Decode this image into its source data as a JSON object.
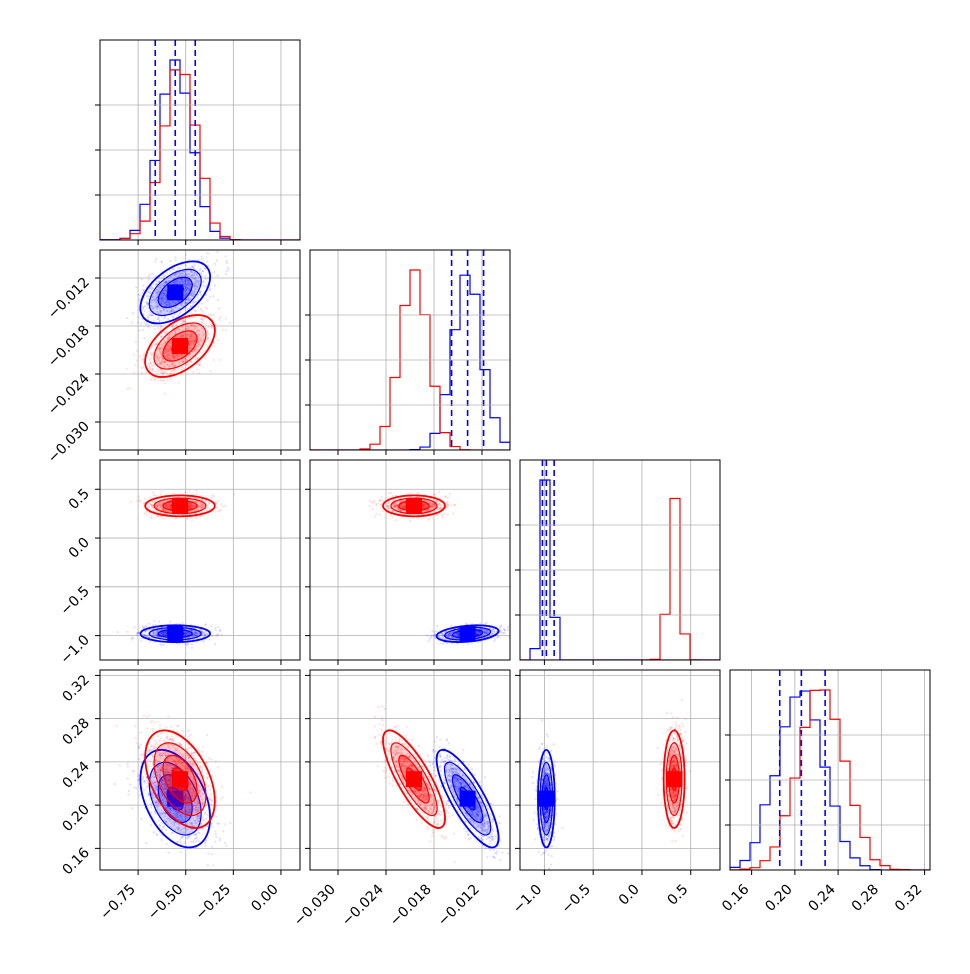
{
  "colors": {
    "series_a": "#0000ff",
    "series_b": "#ff0000",
    "grid": "#b0b0b0",
    "frame": "#000000"
  },
  "chart_data": {
    "type": "corner",
    "grid": true,
    "parameters": [
      {
        "range": [
          -0.95,
          0.1
        ],
        "ticks": [
          -0.75,
          -0.5,
          -0.25,
          0.0
        ],
        "tick_labels": [
          "−0.75",
          "−0.50",
          "−0.25",
          "0.00"
        ]
      },
      {
        "range": [
          -0.0335,
          -0.0085
        ],
        "ticks": [
          -0.03,
          -0.024,
          -0.018,
          -0.012
        ],
        "tick_labels": [
          "−0.030",
          "−0.024",
          "−0.018",
          "−0.012"
        ]
      },
      {
        "range": [
          -1.25,
          0.8
        ],
        "ticks": [
          -1.0,
          -0.5,
          0.0,
          0.5
        ],
        "tick_labels": [
          "−1.0",
          "−0.5",
          "0.0",
          "0.5"
        ]
      },
      {
        "range": [
          0.14,
          0.325
        ],
        "ticks": [
          0.16,
          0.2,
          0.24,
          0.28,
          0.32
        ],
        "tick_labels": [
          "0.16",
          "0.20",
          "0.24",
          "0.28",
          "0.32"
        ]
      }
    ],
    "series": [
      {
        "color": "#0000ff",
        "mean": [
          -0.555,
          -0.0138,
          -0.98,
          0.206
        ],
        "sd": [
          0.085,
          0.0018,
          0.04,
          0.021
        ],
        "corr": {
          "0-1": 0.5,
          "0-2": 0.0,
          "0-3": -0.4,
          "1-2": 0.3,
          "1-3": -0.8,
          "2-3": 0.0
        },
        "quantiles": [
          [
            -0.66,
            -0.555,
            -0.45
          ],
          [
            -0.0158,
            -0.0138,
            -0.0118
          ],
          [
            -1.02,
            -0.98,
            -0.9
          ],
          [
            0.186,
            0.206,
            0.228
          ]
        ]
      },
      {
        "color": "#ff0000",
        "mean": [
          -0.53,
          -0.0205,
          0.33,
          0.224
        ],
        "sd": [
          0.085,
          0.0018,
          0.05,
          0.021
        ],
        "corr": {
          "0-1": 0.5,
          "0-2": 0.0,
          "0-3": -0.45,
          "1-2": 0.0,
          "1-3": -0.8,
          "2-3": 0.0
        },
        "quantiles": null
      }
    ]
  }
}
